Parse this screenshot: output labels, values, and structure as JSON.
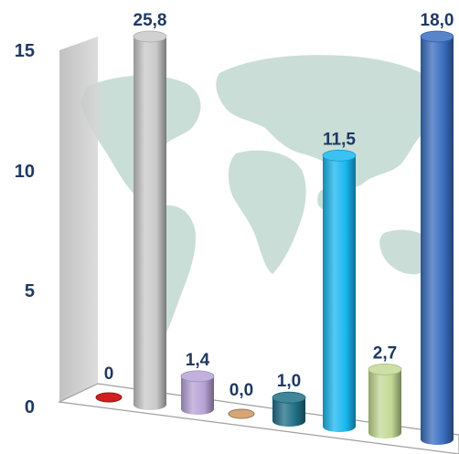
{
  "chart_data": {
    "type": "bar",
    "style": "3d-cylinder",
    "categories": [
      "",
      "",
      "",
      "",
      "",
      "",
      "",
      ""
    ],
    "values": [
      0,
      25.8,
      1.4,
      0.0,
      1.0,
      11.5,
      2.7,
      18.0
    ],
    "data_labels": [
      "0",
      "25,8",
      "1,4",
      "0,0",
      "1,0",
      "11,5",
      "2,7",
      "18,0"
    ],
    "colors": [
      "#d11f1f",
      "#c9c9c9",
      "#b7a3d6",
      "#d6a677",
      "#1f6f86",
      "#19b7f0",
      "#c3d995",
      "#3a6ec0"
    ],
    "ylim": [
      0,
      15
    ],
    "yticks": [
      0,
      5,
      10,
      15
    ],
    "ytick_labels": [
      "0",
      "5",
      "10",
      "15"
    ],
    "xlabel": "",
    "ylabel": "",
    "title": "",
    "grid": false,
    "background": "world-map"
  }
}
